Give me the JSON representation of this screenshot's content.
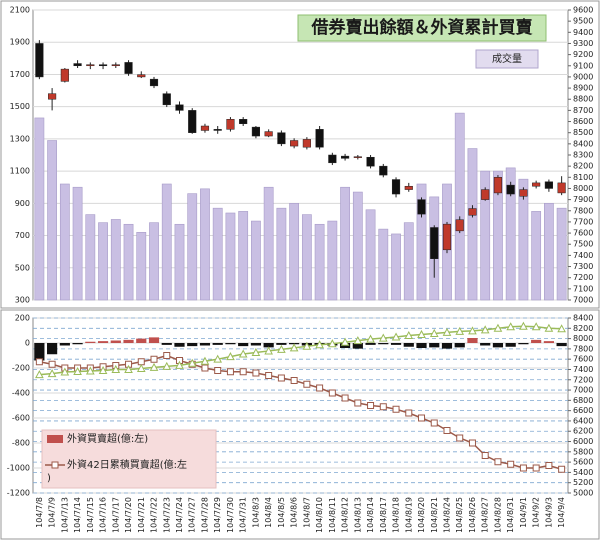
{
  "chart_data": [
    {
      "type": "candlestick",
      "title": "借券賣出餘額＆外資累計買賣",
      "annotation": "成交量",
      "ylim": [
        300,
        2100
      ],
      "yticks": [
        300,
        500,
        700,
        900,
        1100,
        1300,
        1500,
        1700,
        1900,
        2100
      ],
      "y2lim": [
        7000,
        9600
      ],
      "y2ticks": [
        7000,
        7100,
        7200,
        7300,
        7400,
        7500,
        7600,
        7700,
        7800,
        7900,
        8000,
        8100,
        8200,
        8300,
        8400,
        8500,
        8600,
        8700,
        8800,
        8900,
        9000,
        9100,
        9200,
        9300,
        9400,
        9500,
        9600
      ],
      "grid": true,
      "volume": {
        "color": "#c9bfe3",
        "values": [
          1430,
          1290,
          1020,
          1000,
          830,
          780,
          800,
          770,
          720,
          780,
          1020,
          770,
          960,
          990,
          870,
          840,
          850,
          790,
          1000,
          870,
          900,
          830,
          770,
          790,
          1000,
          970,
          860,
          740,
          710,
          780,
          1020,
          940,
          1020,
          1460,
          1240,
          1100,
          1100,
          1120,
          1050,
          850,
          900,
          870
        ]
      },
      "ohlc": {
        "axis": "y2",
        "up_color": "#c0392b",
        "down_color": "#111111",
        "open": [
          9300,
          8800,
          8960,
          9120,
          9100,
          9110,
          9100,
          9130,
          9000,
          8980,
          8850,
          8750,
          8700,
          8520,
          8530,
          8530,
          8620,
          8550,
          8470,
          8500,
          8380,
          8370,
          8530,
          8300,
          8290,
          8280,
          8280,
          8200,
          8080,
          7990,
          7900,
          7650,
          7450,
          7620,
          7760,
          7900,
          7960,
          8030,
          7930,
          8020,
          8060,
          7960
        ],
        "high": [
          9330,
          8900,
          9080,
          9150,
          9130,
          9130,
          9130,
          9150,
          9050,
          9000,
          8870,
          8780,
          8720,
          8580,
          8560,
          8640,
          8640,
          8560,
          8530,
          8520,
          8450,
          8460,
          8560,
          8320,
          8310,
          8300,
          8300,
          8220,
          8100,
          8050,
          7920,
          7670,
          7700,
          7750,
          7850,
          8010,
          8120,
          8060,
          8010,
          8070,
          8080,
          8110
        ],
        "low": [
          8980,
          8700,
          8950,
          9080,
          9070,
          9070,
          9080,
          9010,
          8990,
          8900,
          8730,
          8670,
          8490,
          8500,
          8490,
          8510,
          8560,
          8450,
          8460,
          8380,
          8360,
          8350,
          8350,
          8210,
          8250,
          8260,
          8180,
          8100,
          7920,
          7970,
          7740,
          7200,
          7420,
          7600,
          7740,
          7890,
          7940,
          7930,
          7900,
          8000,
          7970,
          7940
        ],
        "close": [
          9000,
          8850,
          9070,
          9100,
          9110,
          9100,
          9110,
          9030,
          9020,
          8920,
          8750,
          8700,
          8500,
          8560,
          8520,
          8620,
          8580,
          8470,
          8510,
          8400,
          8430,
          8440,
          8370,
          8230,
          8270,
          8285,
          8200,
          8120,
          7950,
          8020,
          7770,
          7370,
          7680,
          7720,
          7820,
          7990,
          8100,
          7950,
          7990,
          8050,
          8000,
          8050
        ]
      }
    },
    {
      "type": "bar_line",
      "categories": [
        "104/7/8",
        "104/7/9",
        "104/7/13",
        "104/7/14",
        "104/7/15",
        "104/7/16",
        "104/7/17",
        "104/7/20",
        "104/7/21",
        "104/7/22",
        "104/7/23",
        "104/7/24",
        "104/7/27",
        "104/7/28",
        "104/7/29",
        "104/7/30",
        "104/7/31",
        "104/8/3",
        "104/8/4",
        "104/8/5",
        "104/8/6",
        "104/8/7",
        "104/8/10",
        "104/8/11",
        "104/8/12",
        "104/8/13",
        "104/8/14",
        "104/8/17",
        "104/8/18",
        "104/8/19",
        "104/8/20",
        "104/8/21",
        "104/8/24",
        "104/8/25",
        "104/8/26",
        "104/8/27",
        "104/8/28",
        "104/8/31",
        "104/9/1",
        "104/9/2",
        "104/9/3",
        "104/9/4"
      ],
      "ylim": [
        -1200,
        200
      ],
      "yticks": [
        -1200,
        -1000,
        -800,
        -600,
        -400,
        -200,
        0,
        200
      ],
      "y2lim": [
        5000,
        8400
      ],
      "y2ticks": [
        5000,
        5200,
        5400,
        5600,
        5800,
        6000,
        6200,
        6400,
        6600,
        6800,
        7000,
        7200,
        7400,
        7600,
        7800,
        8000,
        8200,
        8400
      ],
      "grid": true,
      "series": [
        {
          "name": "外資買賣超(億:左)",
          "type": "bar",
          "color": "#c0504d",
          "negative_color": "#111111",
          "values": [
            -140,
            -90,
            -20,
            -10,
            10,
            15,
            20,
            25,
            35,
            45,
            -15,
            -30,
            -25,
            -20,
            -15,
            -10,
            -25,
            -20,
            -35,
            -15,
            -10,
            -20,
            -15,
            -20,
            -40,
            -45,
            -15,
            -10,
            -15,
            -30,
            -40,
            -35,
            -45,
            -35,
            40,
            -20,
            -35,
            -30,
            -10,
            25,
            15,
            -25
          ]
        },
        {
          "name": "外資42日累積買賣超(億:左)",
          "type": "line",
          "marker": "square",
          "color": "#9c5a4a",
          "values": [
            -150,
            -170,
            -200,
            -200,
            -200,
            -190,
            -180,
            -170,
            -150,
            -130,
            -100,
            -140,
            -170,
            -200,
            -220,
            -230,
            -230,
            -240,
            -260,
            -280,
            -300,
            -330,
            -360,
            -400,
            -440,
            -480,
            -500,
            -510,
            -530,
            -560,
            -600,
            -640,
            -700,
            -760,
            -800,
            -900,
            -950,
            -970,
            -1000,
            -1000,
            -980,
            -1010
          ]
        },
        {
          "type": "line",
          "axis": "y2",
          "marker": "triangle",
          "color": "#9bbb59",
          "values": [
            7300,
            7320,
            7350,
            7360,
            7370,
            7380,
            7400,
            7400,
            7420,
            7440,
            7460,
            7480,
            7520,
            7560,
            7600,
            7650,
            7700,
            7730,
            7760,
            7790,
            7820,
            7850,
            7880,
            7900,
            7930,
            7960,
            7990,
            8010,
            8030,
            8060,
            8080,
            8100,
            8120,
            8140,
            8150,
            8170,
            8200,
            8230,
            8240,
            8230,
            8200,
            8190
          ]
        }
      ]
    }
  ]
}
